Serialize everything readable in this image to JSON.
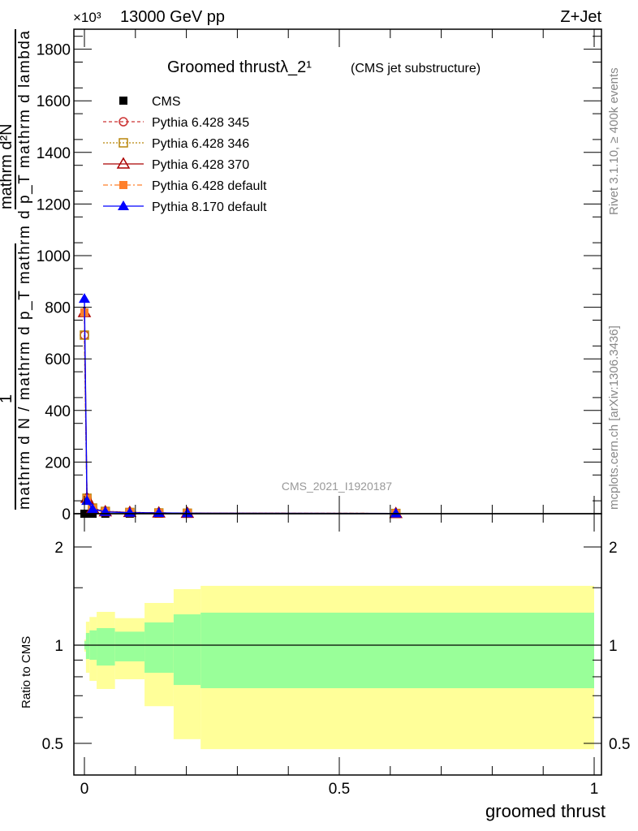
{
  "header": {
    "energy": "13000 GeV pp",
    "process": "Z+Jet",
    "exponent": "×10³"
  },
  "side": {
    "rivet": "Rivet 3.1.10, ≥ 400k events",
    "mcplots": "mcplots.cern.ch [arXiv:1306.3436]"
  },
  "watermark": "CMS_2021_I1920187",
  "colors": {
    "cms": "#000000",
    "p345": "#cc3333",
    "p346": "#b8860b",
    "p370": "#aa0000",
    "p6def": "#ff7f2a",
    "p8def": "#0000ff",
    "yellow": "#ffff99",
    "green": "#99ff99"
  },
  "chart_data": [
    {
      "type": "line",
      "title": "Groomed thrustλ_2¹",
      "subtitle": "(CMS jet substructure)",
      "ylabel_num": "mathrm d²N",
      "ylabel_den": "mathrm d N / mathrm d p_T mathrm d p_T mathrm d lambda",
      "ylabel_one": "1",
      "ylim": [
        0,
        1880
      ],
      "xlim": [
        -0.02,
        1.02
      ],
      "yticks": [
        "0",
        "200",
        "400",
        "600",
        "800",
        "1000",
        "1200",
        "1400",
        "1600",
        "1800"
      ],
      "x": [
        0.0,
        0.005,
        0.016,
        0.041,
        0.089,
        0.146,
        0.202,
        0.611
      ],
      "series": [
        {
          "name": "CMS",
          "marker": "square-filled",
          "values": [
            0,
            0,
            0,
            0,
            0,
            0,
            0,
            0
          ]
        },
        {
          "name": "Pythia 6.428 345",
          "marker": "circle-open",
          "values": [
            692,
            60,
            22,
            9,
            5,
            3,
            2,
            1
          ]
        },
        {
          "name": "Pythia 6.428 346",
          "marker": "square-open",
          "values": [
            692,
            60,
            22,
            9,
            5,
            3,
            2,
            1
          ]
        },
        {
          "name": "Pythia 6.428 370",
          "marker": "triangle-open",
          "values": [
            780,
            60,
            20,
            8,
            5,
            3,
            2,
            1
          ]
        },
        {
          "name": "Pythia 6.428 default",
          "marker": "square-filled",
          "values": [
            780,
            58,
            20,
            8,
            5,
            3,
            2,
            1
          ]
        },
        {
          "name": "Pythia 8.170 default",
          "marker": "triangle-filled",
          "values": [
            833,
            50,
            18,
            7,
            4,
            3,
            2,
            1
          ]
        }
      ]
    },
    {
      "type": "area",
      "ylabel": "Ratio to CMS",
      "xlabel": "groomed thrust",
      "ylim": [
        0.42,
        2.3
      ],
      "scale": "log",
      "yticks": [
        "0.5",
        "1",
        "2"
      ],
      "xticks": [
        "0",
        "0.5",
        "1"
      ],
      "bins": [
        [
          0,
          0.003
        ],
        [
          0.003,
          0.01
        ],
        [
          0.01,
          0.024
        ],
        [
          0.024,
          0.06
        ],
        [
          0.06,
          0.118
        ],
        [
          0.118,
          0.175
        ],
        [
          0.175,
          0.228
        ],
        [
          0.228,
          1.0
        ]
      ],
      "yellow": [
        [
          0.955,
          1.04
        ],
        [
          0.823,
          1.18
        ],
        [
          0.777,
          1.22
        ],
        [
          0.734,
          1.265
        ],
        [
          0.786,
          1.21
        ],
        [
          0.65,
          1.347
        ],
        [
          0.515,
          1.485
        ],
        [
          0.48,
          1.52
        ]
      ],
      "green": [
        [
          0.97,
          1.03
        ],
        [
          0.907,
          1.09
        ],
        [
          0.902,
          1.11
        ],
        [
          0.866,
          1.128
        ],
        [
          0.892,
          1.1
        ],
        [
          0.823,
          1.174
        ],
        [
          0.755,
          1.243
        ],
        [
          0.738,
          1.258
        ]
      ]
    }
  ]
}
